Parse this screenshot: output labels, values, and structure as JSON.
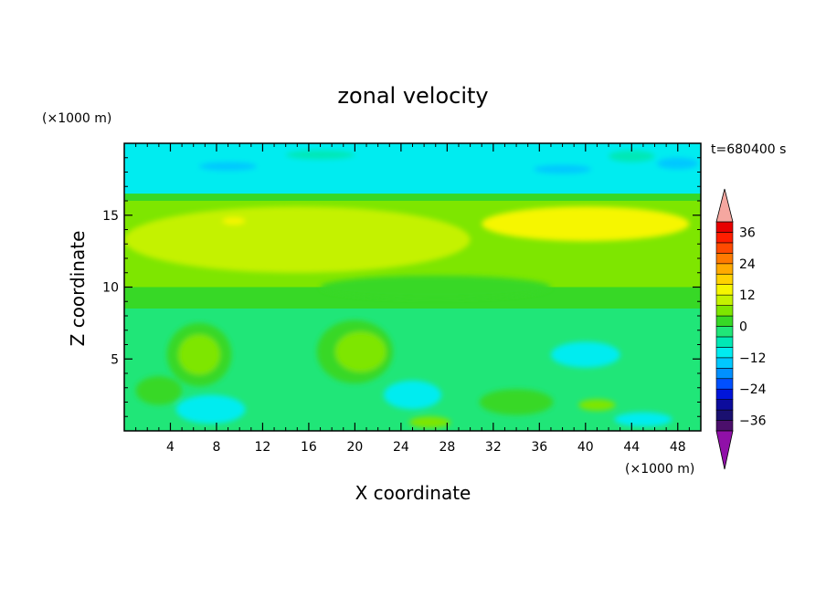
{
  "chart_data": {
    "type": "heatmap",
    "title": "zonal velocity",
    "time_label": "t=680400 s",
    "xlabel": "X coordinate",
    "ylabel": "Z coordinate",
    "x_unit_label": "(×1000 m)",
    "y_unit_label": "(×1000 m)",
    "xlim": [
      0,
      50
    ],
    "ylim": [
      0,
      20
    ],
    "x_ticks": [
      4,
      8,
      12,
      16,
      20,
      24,
      28,
      32,
      36,
      40,
      44,
      48
    ],
    "x_tick_labels": [
      "4",
      "8",
      "12",
      "16",
      "20",
      "24",
      "28",
      "32",
      "36",
      "40",
      "44",
      "48"
    ],
    "y_ticks": [
      5,
      10,
      15
    ],
    "y_tick_labels": [
      "5",
      "10",
      "15"
    ],
    "colorbar": {
      "min": -40,
      "max": 40,
      "step": 4,
      "extend": "both",
      "tick_values": [
        36,
        24,
        12,
        0,
        -12,
        -24,
        -36
      ],
      "tick_labels": [
        "36",
        "24",
        "12",
        "0",
        "−12",
        "−24",
        "−36"
      ],
      "colors": [
        "#4b0f6b",
        "#1a1070",
        "#0c0c9c",
        "#0015d9",
        "#0050ff",
        "#0090ff",
        "#00c8ff",
        "#00ecf0",
        "#00e8b5",
        "#20e678",
        "#37d826",
        "#7ee600",
        "#c4f200",
        "#f6f600",
        "#ffd200",
        "#ffaa00",
        "#ff7a00",
        "#ff4a00",
        "#ff1e00",
        "#e80000"
      ],
      "over_color": "#f5a7a0",
      "under_color": "#9010a8"
    },
    "field_layers": [
      {
        "z_range": [
          16.5,
          20
        ],
        "value": -10
      },
      {
        "z_range": [
          16.0,
          16.5
        ],
        "value": 2
      },
      {
        "z_range": [
          10.0,
          16.0
        ],
        "value": 6
      },
      {
        "z_range": [
          8.5,
          10.0
        ],
        "value": 2
      },
      {
        "z_range": [
          0,
          8.5
        ],
        "value": -4
      }
    ],
    "field_features": [
      {
        "x": 15,
        "z": 13.3,
        "rx": 15,
        "rz": 2.3,
        "value": 9
      },
      {
        "x": 40,
        "z": 14.4,
        "rx": 9,
        "rz": 1.2,
        "value": 14
      },
      {
        "x": 9.5,
        "z": 14.6,
        "rx": 1.0,
        "rz": 0.25,
        "value": 14
      },
      {
        "x": 27,
        "z": 10.0,
        "rx": 10,
        "rz": 0.8,
        "value": 2
      },
      {
        "x": 6.5,
        "z": 5.3,
        "rx": 2.8,
        "rz": 2.2,
        "value": 2
      },
      {
        "x": 6.5,
        "z": 5.3,
        "rx": 1.8,
        "rz": 1.4,
        "value": 6
      },
      {
        "x": 20,
        "z": 5.5,
        "rx": 3.3,
        "rz": 2.2,
        "value": 2
      },
      {
        "x": 20.5,
        "z": 5.5,
        "rx": 2.2,
        "rz": 1.4,
        "value": 6
      },
      {
        "x": 3,
        "z": 2.8,
        "rx": 2.0,
        "rz": 1.0,
        "value": 2
      },
      {
        "x": 34,
        "z": 2.0,
        "rx": 3.2,
        "rz": 0.9,
        "value": 2
      },
      {
        "x": 41,
        "z": 1.8,
        "rx": 1.6,
        "rz": 0.4,
        "value": 6
      },
      {
        "x": 26.5,
        "z": 0.6,
        "rx": 1.8,
        "rz": 0.4,
        "value": 6
      },
      {
        "x": 7.5,
        "z": 1.5,
        "rx": 3,
        "rz": 1.0,
        "value": -10
      },
      {
        "x": 25,
        "z": 2.5,
        "rx": 2.5,
        "rz": 1.0,
        "value": -10
      },
      {
        "x": 40,
        "z": 5.3,
        "rx": 3,
        "rz": 0.9,
        "value": -10
      },
      {
        "x": 45,
        "z": 0.8,
        "rx": 2.5,
        "rz": 0.5,
        "value": -10
      },
      {
        "x": 9,
        "z": 18.4,
        "rx": 2.5,
        "rz": 0.3,
        "value": -14
      },
      {
        "x": 38,
        "z": 18.2,
        "rx": 2.5,
        "rz": 0.3,
        "value": -14
      },
      {
        "x": 48,
        "z": 18.6,
        "rx": 1.8,
        "rz": 0.4,
        "value": -14
      },
      {
        "x": 17,
        "z": 19.2,
        "rx": 3,
        "rz": 0.3,
        "value": -6
      },
      {
        "x": 44,
        "z": 19.1,
        "rx": 2.0,
        "rz": 0.4,
        "value": -6
      }
    ]
  }
}
